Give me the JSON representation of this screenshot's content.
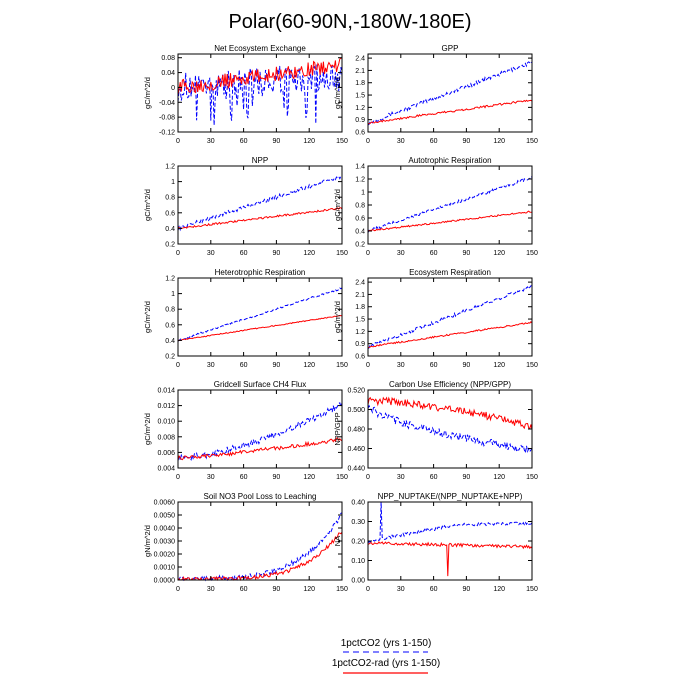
{
  "figure": {
    "title": "Polar(60-90N,-180W-180E)",
    "legend": [
      {
        "label": "1pctCO2 (yrs 1-150)",
        "color": "#0000ff",
        "dash": true
      },
      {
        "label": "1pctCO2-rad (yrs 1-150)",
        "color": "#ff0000",
        "dash": false
      }
    ]
  },
  "chart_data": [
    {
      "type": "line",
      "title": "Net Ecosystem Exchange",
      "ylabel": "gC/m^2/d",
      "xlim": [
        0,
        150
      ],
      "ylim": [
        -0.12,
        0.09
      ],
      "yticks": [
        0.08,
        0.04,
        0,
        -0.04,
        -0.08,
        -0.12
      ],
      "ytick_labels": [
        "0.08",
        "0.04",
        "0",
        "-0.04",
        "-0.08",
        "-0.12"
      ],
      "xticks": [
        0,
        30,
        60,
        90,
        120,
        150
      ],
      "series": [
        {
          "color": "#0000ff",
          "dash": true,
          "start": 0.0,
          "end": 0.03,
          "noise": 0.04,
          "spike_min": -0.11
        },
        {
          "color": "#ff0000",
          "dash": false,
          "start": 0.0,
          "end": 0.06,
          "noise": 0.02
        }
      ]
    },
    {
      "type": "line",
      "title": "GPP",
      "ylabel": "gC/m^2/d",
      "xlim": [
        0,
        150
      ],
      "ylim": [
        0.6,
        2.5
      ],
      "yticks": [
        0.6,
        0.9,
        1.2,
        1.5,
        1.8,
        2.1,
        2.4
      ],
      "ytick_labels": [
        "0.6",
        "0.9",
        "1.2",
        "1.5",
        "1.8",
        "2.1",
        "2.4"
      ],
      "xticks": [
        0,
        30,
        60,
        90,
        120,
        150
      ],
      "series": [
        {
          "color": "#0000ff",
          "dash": true,
          "start": 0.82,
          "end": 2.3,
          "noise": 0.05
        },
        {
          "color": "#ff0000",
          "dash": false,
          "start": 0.82,
          "end": 1.38,
          "noise": 0.025
        }
      ]
    },
    {
      "type": "line",
      "title": "NPP",
      "ylabel": "gC/m^2/d",
      "xlim": [
        0,
        150
      ],
      "ylim": [
        0.2,
        1.2
      ],
      "yticks": [
        0.2,
        0.4,
        0.6,
        0.8,
        1.0,
        1.2
      ],
      "ytick_labels": [
        "0.2",
        "0.4",
        "0.6",
        "0.8",
        "1",
        "1.2"
      ],
      "xticks": [
        0,
        30,
        60,
        90,
        120,
        150
      ],
      "series": [
        {
          "color": "#0000ff",
          "dash": true,
          "start": 0.4,
          "end": 1.07,
          "noise": 0.025
        },
        {
          "color": "#ff0000",
          "dash": false,
          "start": 0.4,
          "end": 0.66,
          "noise": 0.012
        }
      ]
    },
    {
      "type": "line",
      "title": "Autotrophic Respiration",
      "ylabel": "gC/m^2/d",
      "xlim": [
        0,
        150
      ],
      "ylim": [
        0.2,
        1.4
      ],
      "yticks": [
        0.2,
        0.4,
        0.6,
        0.8,
        1.0,
        1.2,
        1.4
      ],
      "ytick_labels": [
        "0.2",
        "0.4",
        "0.6",
        "0.8",
        "1",
        "1.2",
        "1.4"
      ],
      "xticks": [
        0,
        30,
        60,
        90,
        120,
        150
      ],
      "series": [
        {
          "color": "#0000ff",
          "dash": true,
          "start": 0.4,
          "end": 1.22,
          "noise": 0.025
        },
        {
          "color": "#ff0000",
          "dash": false,
          "start": 0.4,
          "end": 0.7,
          "noise": 0.012
        }
      ]
    },
    {
      "type": "line",
      "title": "Heterotrophic Respiration",
      "ylabel": "gC/m^2/d",
      "xlim": [
        0,
        150
      ],
      "ylim": [
        0.2,
        1.2
      ],
      "yticks": [
        0.2,
        0.4,
        0.6,
        0.8,
        1.0,
        1.2
      ],
      "ytick_labels": [
        "0.2",
        "0.4",
        "0.6",
        "0.8",
        "1",
        "1.2"
      ],
      "xticks": [
        0,
        30,
        60,
        90,
        120,
        150
      ],
      "series": [
        {
          "color": "#0000ff",
          "dash": true,
          "start": 0.4,
          "end": 1.07,
          "noise": 0.012
        },
        {
          "color": "#ff0000",
          "dash": false,
          "start": 0.4,
          "end": 0.72,
          "noise": 0.006
        }
      ]
    },
    {
      "type": "line",
      "title": "Ecosystem Respiration",
      "ylabel": "gC/m^2/d",
      "xlim": [
        0,
        150
      ],
      "ylim": [
        0.6,
        2.5
      ],
      "yticks": [
        0.6,
        0.9,
        1.2,
        1.5,
        1.8,
        2.1,
        2.4
      ],
      "ytick_labels": [
        "0.6",
        "0.9",
        "1.2",
        "1.5",
        "1.8",
        "2.1",
        "2.4"
      ],
      "xticks": [
        0,
        30,
        60,
        90,
        120,
        150
      ],
      "series": [
        {
          "color": "#0000ff",
          "dash": true,
          "start": 0.82,
          "end": 2.3,
          "noise": 0.04
        },
        {
          "color": "#ff0000",
          "dash": false,
          "start": 0.82,
          "end": 1.42,
          "noise": 0.02
        }
      ]
    },
    {
      "type": "line",
      "title": "Gridcell Surface CH4 Flux",
      "ylabel": "gC/m^2/d",
      "xlim": [
        0,
        150
      ],
      "ylim": [
        0.004,
        0.014
      ],
      "yticks": [
        0.004,
        0.006,
        0.008,
        0.01,
        0.012,
        0.014
      ],
      "ytick_labels": [
        "0.004",
        "0.006",
        "0.008",
        "0.010",
        "0.012",
        "0.014"
      ],
      "xticks": [
        0,
        30,
        60,
        90,
        120,
        150
      ],
      "series": [
        {
          "color": "#0000ff",
          "dash": true,
          "start": 0.0053,
          "end": 0.0122,
          "noise": 0.0004,
          "curve": 1.6
        },
        {
          "color": "#ff0000",
          "dash": false,
          "start": 0.0053,
          "end": 0.0077,
          "noise": 0.00025,
          "curve": 1.3
        }
      ]
    },
    {
      "type": "line",
      "title": "Carbon Use Efficiency (NPP/GPP)",
      "ylabel": "NPP/GPP",
      "xlim": [
        0,
        150
      ],
      "ylim": [
        0.44,
        0.52
      ],
      "yticks": [
        0.44,
        0.46,
        0.48,
        0.5,
        0.52
      ],
      "ytick_labels": [
        "0.440",
        "0.460",
        "0.480",
        "0.500",
        "0.520"
      ],
      "xticks": [
        0,
        30,
        60,
        90,
        120,
        150
      ],
      "series": [
        {
          "color": "#0000ff",
          "dash": true,
          "start": 0.505,
          "end": 0.458,
          "noise": 0.004,
          "curve": 0.6
        },
        {
          "color": "#ff0000",
          "dash": false,
          "start": 0.509,
          "end": 0.483,
          "noise": 0.004,
          "curve": 1.6
        }
      ]
    },
    {
      "type": "line",
      "title": "Soil NO3 Pool Loss to Leaching",
      "ylabel": "gN/m^2/d",
      "xlim": [
        0,
        150
      ],
      "ylim": [
        0,
        0.006
      ],
      "yticks": [
        0,
        0.001,
        0.002,
        0.003,
        0.004,
        0.005,
        0.006
      ],
      "ytick_labels": [
        "0.0000",
        "0.0010",
        "0.0020",
        "0.0030",
        "0.0040",
        "0.0050",
        "0.0060"
      ],
      "xticks": [
        0,
        30,
        60,
        90,
        120,
        150
      ],
      "series": [
        {
          "color": "#0000ff",
          "dash": true,
          "start": 0.0001,
          "end": 0.0051,
          "noise": 0.0002,
          "curve": 4
        },
        {
          "color": "#ff0000",
          "dash": false,
          "start": 0.0001,
          "end": 0.0038,
          "noise": 0.00015,
          "curve": 4.5
        }
      ]
    },
    {
      "type": "line",
      "title": "NPP_NUPTAKE/(NPP_NUPTAKE+NPP)",
      "ylabel": "NA",
      "xlim": [
        0,
        150
      ],
      "ylim": [
        0,
        0.4
      ],
      "yticks": [
        0,
        0.1,
        0.2,
        0.3,
        0.4
      ],
      "ytick_labels": [
        "0.00",
        "0.10",
        "0.20",
        "0.30",
        "0.40"
      ],
      "xticks": [
        0,
        30,
        60,
        90,
        120,
        150
      ],
      "series": [
        {
          "color": "#0000ff",
          "dash": true,
          "start": 0.2,
          "end": 0.29,
          "noise": 0.008,
          "plateau": true,
          "spike_x": 12,
          "spike_y": 0.41
        },
        {
          "color": "#ff0000",
          "dash": false,
          "start": 0.19,
          "end": 0.17,
          "noise": 0.008,
          "spike_x": 73,
          "spike_y": 0.02
        }
      ]
    }
  ]
}
